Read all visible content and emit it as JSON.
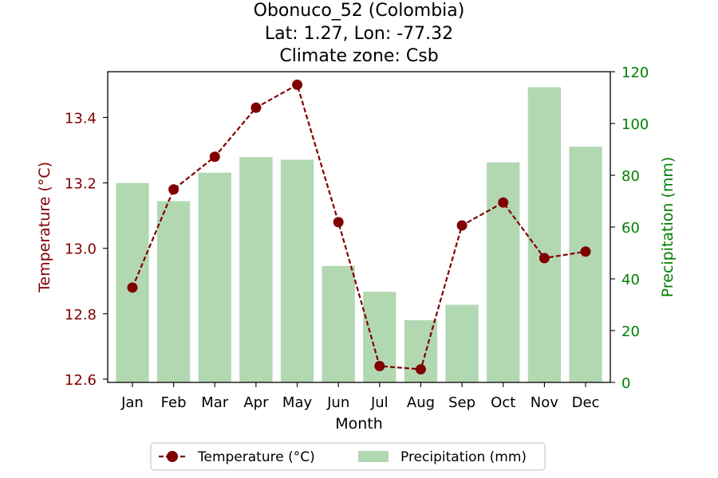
{
  "chart_data": {
    "type": "bar",
    "title_lines": [
      "Obonuco_52 (Colombia)",
      "Lat: 1.27, Lon: -77.32",
      "Climate zone: Csb"
    ],
    "xlabel": "Month",
    "ylabel_left": "Temperature (°C)",
    "ylabel_right": "Precipitation (mm)",
    "categories": [
      "Jan",
      "Feb",
      "Mar",
      "Apr",
      "May",
      "Jun",
      "Jul",
      "Aug",
      "Sep",
      "Oct",
      "Nov",
      "Dec"
    ],
    "ylim_left": [
      12.59,
      13.54
    ],
    "yticks_left": [
      "12.6",
      "12.8",
      "13.0",
      "13.2",
      "13.4"
    ],
    "ylim_right": [
      0,
      120
    ],
    "yticks_right": [
      "0",
      "20",
      "40",
      "60",
      "80",
      "100",
      "120"
    ],
    "grid": false,
    "legend_position": "bottom-center",
    "series": [
      {
        "name": "Temperature (°C)",
        "kind": "line",
        "axis": "left",
        "color": "#800000",
        "values": [
          12.88,
          13.18,
          13.28,
          13.43,
          13.5,
          13.08,
          12.64,
          12.63,
          13.07,
          13.14,
          12.97,
          12.99
        ]
      },
      {
        "name": "Precipitation (mm)",
        "kind": "bar",
        "axis": "right",
        "color": "#b2d8b2",
        "values": [
          77,
          70,
          81,
          87,
          86,
          45,
          35,
          24,
          30,
          85,
          114,
          91
        ]
      }
    ],
    "colors": {
      "temperature": "#800000",
      "precipitation": "#b2d8b2",
      "right_axis": "#008000",
      "left_axis": "#800000"
    }
  }
}
